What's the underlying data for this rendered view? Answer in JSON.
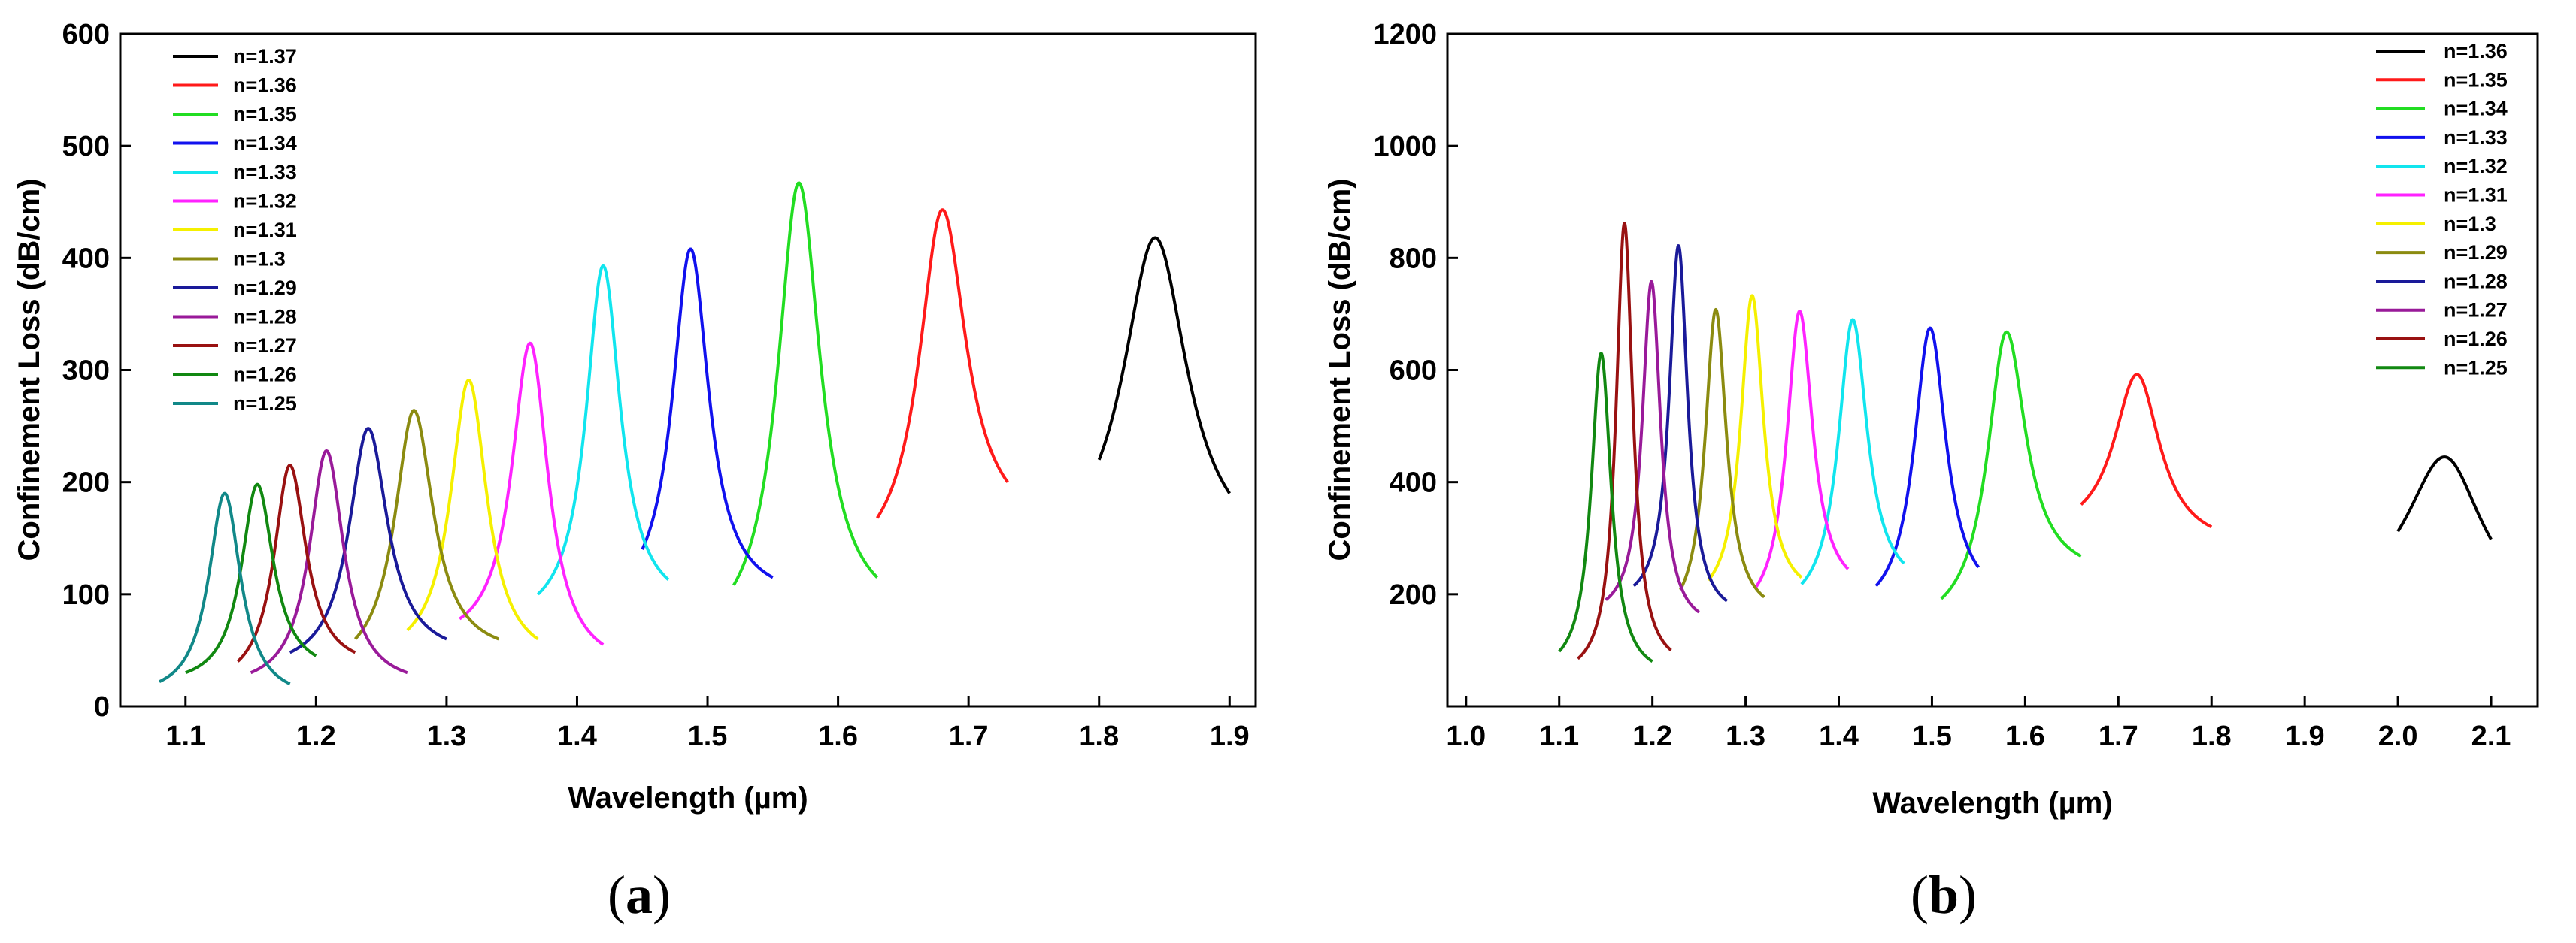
{
  "chart_data": [
    {
      "type": "line",
      "panel": "(a)",
      "xlabel": "Wavelength (µm)",
      "ylabel": "Confinement Loss (dB/cm)",
      "xlim": [
        1.05,
        1.92
      ],
      "ylim": [
        0,
        600
      ],
      "xticks": [
        1.1,
        1.2,
        1.3,
        1.4,
        1.5,
        1.6,
        1.7,
        1.8,
        1.9
      ],
      "yticks": [
        0,
        100,
        200,
        300,
        400,
        500,
        600
      ],
      "legend_position": "top-left",
      "series": [
        {
          "name": "n=1.37",
          "color": "#000000",
          "x_range": [
            1.8,
            1.9
          ],
          "peak_x": 1.843,
          "peak_y": 418,
          "start_y": 220,
          "end_y": 190,
          "width": 0.03
        },
        {
          "name": "n=1.36",
          "color": "#ff1a1a",
          "x_range": [
            1.63,
            1.73
          ],
          "peak_x": 1.68,
          "peak_y": 443,
          "start_y": 168,
          "end_y": 200,
          "width": 0.022
        },
        {
          "name": "n=1.35",
          "color": "#22dd22",
          "x_range": [
            1.52,
            1.63
          ],
          "peak_x": 1.57,
          "peak_y": 467,
          "start_y": 108,
          "end_y": 115,
          "width": 0.02
        },
        {
          "name": "n=1.34",
          "color": "#1111ee",
          "x_range": [
            1.45,
            1.55
          ],
          "peak_x": 1.487,
          "peak_y": 408,
          "start_y": 140,
          "end_y": 115,
          "width": 0.017
        },
        {
          "name": "n=1.33",
          "color": "#11e5ee",
          "x_range": [
            1.37,
            1.47
          ],
          "peak_x": 1.42,
          "peak_y": 393,
          "start_y": 100,
          "end_y": 113,
          "width": 0.016
        },
        {
          "name": "n=1.32",
          "color": "#ff22ff",
          "x_range": [
            1.31,
            1.42
          ],
          "peak_x": 1.364,
          "peak_y": 324,
          "start_y": 78,
          "end_y": 55,
          "width": 0.017
        },
        {
          "name": "n=1.31",
          "color": "#f5f000",
          "x_range": [
            1.27,
            1.37
          ],
          "peak_x": 1.317,
          "peak_y": 291,
          "start_y": 68,
          "end_y": 60,
          "width": 0.017
        },
        {
          "name": "n=1.3",
          "color": "#8b8b10",
          "x_range": [
            1.23,
            1.34
          ],
          "peak_x": 1.275,
          "peak_y": 264,
          "start_y": 60,
          "end_y": 60,
          "width": 0.018
        },
        {
          "name": "n=1.29",
          "color": "#1a1a99",
          "x_range": [
            1.18,
            1.3
          ],
          "peak_x": 1.24,
          "peak_y": 248,
          "start_y": 48,
          "end_y": 60,
          "width": 0.018
        },
        {
          "name": "n=1.28",
          "color": "#991a99",
          "x_range": [
            1.15,
            1.27
          ],
          "peak_x": 1.208,
          "peak_y": 228,
          "start_y": 30,
          "end_y": 30,
          "width": 0.016
        },
        {
          "name": "n=1.27",
          "color": "#991111",
          "x_range": [
            1.14,
            1.23
          ],
          "peak_x": 1.18,
          "peak_y": 215,
          "start_y": 40,
          "end_y": 48,
          "width": 0.015
        },
        {
          "name": "n=1.26",
          "color": "#118811",
          "x_range": [
            1.1,
            1.2
          ],
          "peak_x": 1.155,
          "peak_y": 198,
          "start_y": 30,
          "end_y": 45,
          "width": 0.015
        },
        {
          "name": "n=1.25",
          "color": "#118888",
          "x_range": [
            1.08,
            1.18
          ],
          "peak_x": 1.13,
          "peak_y": 190,
          "start_y": 22,
          "end_y": 20,
          "width": 0.015
        }
      ]
    },
    {
      "type": "line",
      "panel": "(b)",
      "xlabel": "Wavelength (µm)",
      "ylabel": "Confinement Loss (dB/cm)",
      "xlim": [
        0.98,
        2.15
      ],
      "ylim": [
        0,
        1200
      ],
      "xticks": [
        1.0,
        1.1,
        1.2,
        1.3,
        1.4,
        1.5,
        1.6,
        1.7,
        1.8,
        1.9,
        2.0,
        2.1
      ],
      "yticks": [
        200,
        400,
        600,
        800,
        1000,
        1200
      ],
      "legend_position": "top-right",
      "series": [
        {
          "name": "n=1.36",
          "color": "#000000",
          "x_range": [
            2.0,
            2.1
          ],
          "peak_x": 2.05,
          "peak_y": 445,
          "start_y": 312,
          "end_y": 298,
          "width": 0.05
        },
        {
          "name": "n=1.35",
          "color": "#ff1a1a",
          "x_range": [
            1.66,
            1.8
          ],
          "peak_x": 1.72,
          "peak_y": 592,
          "start_y": 360,
          "end_y": 320,
          "width": 0.03
        },
        {
          "name": "n=1.34",
          "color": "#22dd22",
          "x_range": [
            1.51,
            1.66
          ],
          "peak_x": 1.58,
          "peak_y": 668,
          "start_y": 192,
          "end_y": 268,
          "width": 0.025
        },
        {
          "name": "n=1.33",
          "color": "#1111ee",
          "x_range": [
            1.44,
            1.55
          ],
          "peak_x": 1.498,
          "peak_y": 675,
          "start_y": 215,
          "end_y": 248,
          "width": 0.021
        },
        {
          "name": "n=1.32",
          "color": "#11e5ee",
          "x_range": [
            1.36,
            1.47
          ],
          "peak_x": 1.415,
          "peak_y": 690,
          "start_y": 218,
          "end_y": 255,
          "width": 0.019
        },
        {
          "name": "n=1.31",
          "color": "#ff22ff",
          "x_range": [
            1.31,
            1.41
          ],
          "peak_x": 1.358,
          "peak_y": 705,
          "start_y": 210,
          "end_y": 245,
          "width": 0.017
        },
        {
          "name": "n=1.3",
          "color": "#f5f000",
          "x_range": [
            1.26,
            1.36
          ],
          "peak_x": 1.307,
          "peak_y": 733,
          "start_y": 225,
          "end_y": 230,
          "width": 0.015
        },
        {
          "name": "n=1.29",
          "color": "#8b8b10",
          "x_range": [
            1.23,
            1.32
          ],
          "peak_x": 1.268,
          "peak_y": 708,
          "start_y": 208,
          "end_y": 195,
          "width": 0.014
        },
        {
          "name": "n=1.28",
          "color": "#1a1a99",
          "x_range": [
            1.18,
            1.28
          ],
          "peak_x": 1.228,
          "peak_y": 822,
          "start_y": 215,
          "end_y": 188,
          "width": 0.012
        },
        {
          "name": "n=1.27",
          "color": "#991a99",
          "x_range": [
            1.15,
            1.25
          ],
          "peak_x": 1.199,
          "peak_y": 758,
          "start_y": 190,
          "end_y": 168,
          "width": 0.012
        },
        {
          "name": "n=1.26",
          "color": "#991111",
          "x_range": [
            1.12,
            1.22
          ],
          "peak_x": 1.17,
          "peak_y": 862,
          "start_y": 85,
          "end_y": 100,
          "width": 0.011
        },
        {
          "name": "n=1.25",
          "color": "#118811",
          "x_range": [
            1.1,
            1.2
          ],
          "peak_x": 1.145,
          "peak_y": 630,
          "start_y": 98,
          "end_y": 80,
          "width": 0.013
        }
      ]
    }
  ]
}
